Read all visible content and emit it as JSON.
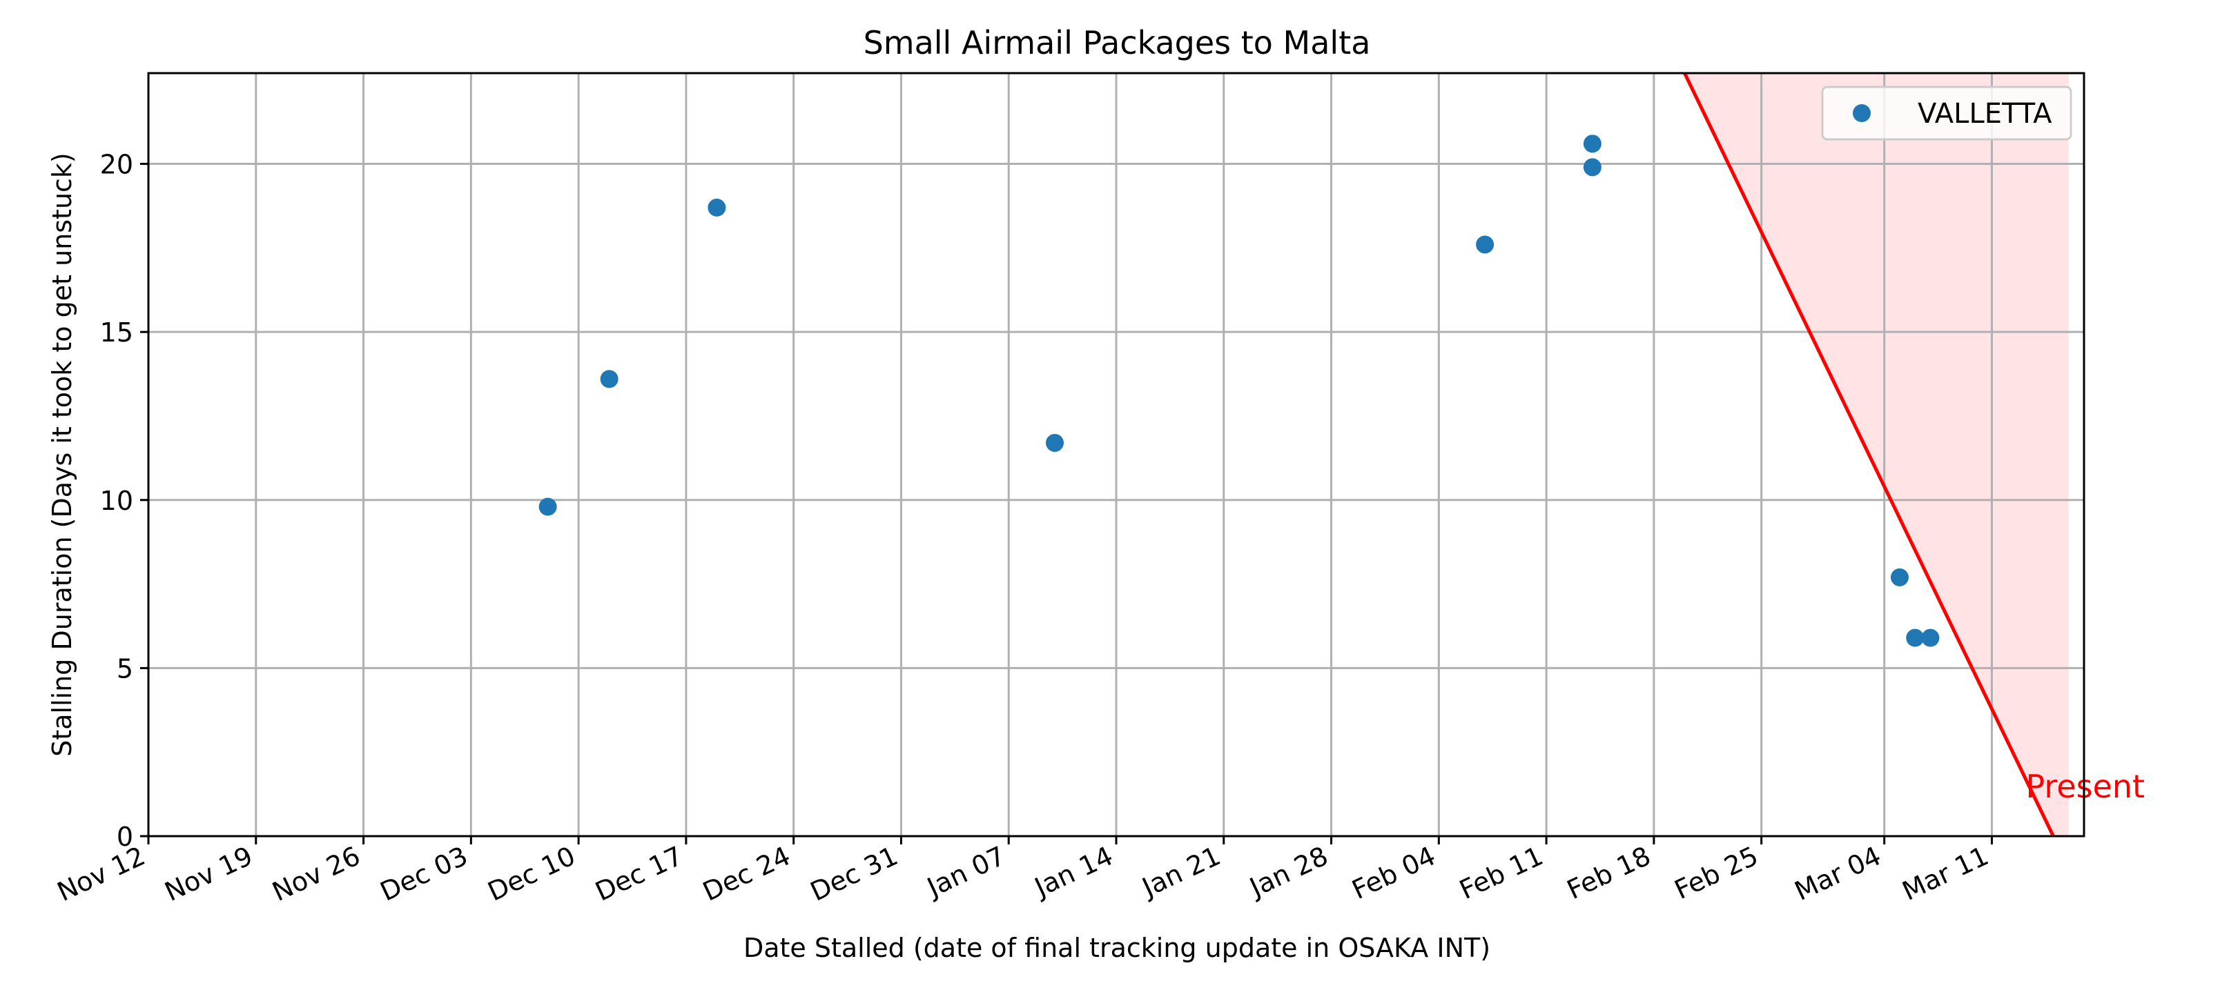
{
  "chart_data": {
    "type": "scatter",
    "title": "Small Airmail Packages to Malta",
    "xlabel": "Date Stalled (date of final tracking update in OSAKA INT)",
    "ylabel": "Stalling Duration (Days it took to get unstuck)",
    "x_axis_type": "date",
    "xlim": [
      "2023-11-12",
      "2024-03-17"
    ],
    "ylim": [
      0,
      22.7
    ],
    "x_ticks": [
      {
        "date": "2023-11-12",
        "label": "Nov 12"
      },
      {
        "date": "2023-11-19",
        "label": "Nov 19"
      },
      {
        "date": "2023-11-26",
        "label": "Nov 26"
      },
      {
        "date": "2023-12-03",
        "label": "Dec 03"
      },
      {
        "date": "2023-12-10",
        "label": "Dec 10"
      },
      {
        "date": "2023-12-17",
        "label": "Dec 17"
      },
      {
        "date": "2023-12-24",
        "label": "Dec 24"
      },
      {
        "date": "2023-12-31",
        "label": "Dec 31"
      },
      {
        "date": "2024-01-07",
        "label": "Jan 07"
      },
      {
        "date": "2024-01-14",
        "label": "Jan 14"
      },
      {
        "date": "2024-01-21",
        "label": "Jan 21"
      },
      {
        "date": "2024-01-28",
        "label": "Jan 28"
      },
      {
        "date": "2024-02-04",
        "label": "Feb 04"
      },
      {
        "date": "2024-02-11",
        "label": "Feb 11"
      },
      {
        "date": "2024-02-18",
        "label": "Feb 18"
      },
      {
        "date": "2024-02-25",
        "label": "Feb 25"
      },
      {
        "date": "2024-03-04",
        "label": "Mar 04"
      },
      {
        "date": "2024-03-11",
        "label": "Mar 11"
      }
    ],
    "y_ticks": [
      0,
      5,
      10,
      15,
      20
    ],
    "grid": true,
    "legend_position": "top-right",
    "series": [
      {
        "name": "VALLETTA",
        "color": "#1f77b4",
        "points": [
          {
            "x": "2023-12-08",
            "y": 9.8
          },
          {
            "x": "2023-12-12",
            "y": 13.6
          },
          {
            "x": "2023-12-19",
            "y": 18.7
          },
          {
            "x": "2024-01-10",
            "y": 11.7
          },
          {
            "x": "2024-02-07",
            "y": 17.6
          },
          {
            "x": "2024-02-14",
            "y": 20.6
          },
          {
            "x": "2024-02-14",
            "y": 19.9
          },
          {
            "x": "2024-03-05",
            "y": 7.7
          },
          {
            "x": "2024-03-06",
            "y": 5.9
          },
          {
            "x": "2024-03-07",
            "y": 5.9
          }
        ]
      }
    ],
    "annotations": [
      {
        "kind": "present_boundary",
        "text": "Present",
        "color": "#ff0000",
        "fill": "#ffe3e5",
        "line": [
          {
            "x": "2024-02-20",
            "y": 22.7
          },
          {
            "x": "2024-03-15",
            "y": 0
          }
        ],
        "shade_until": "2024-03-16"
      }
    ]
  }
}
